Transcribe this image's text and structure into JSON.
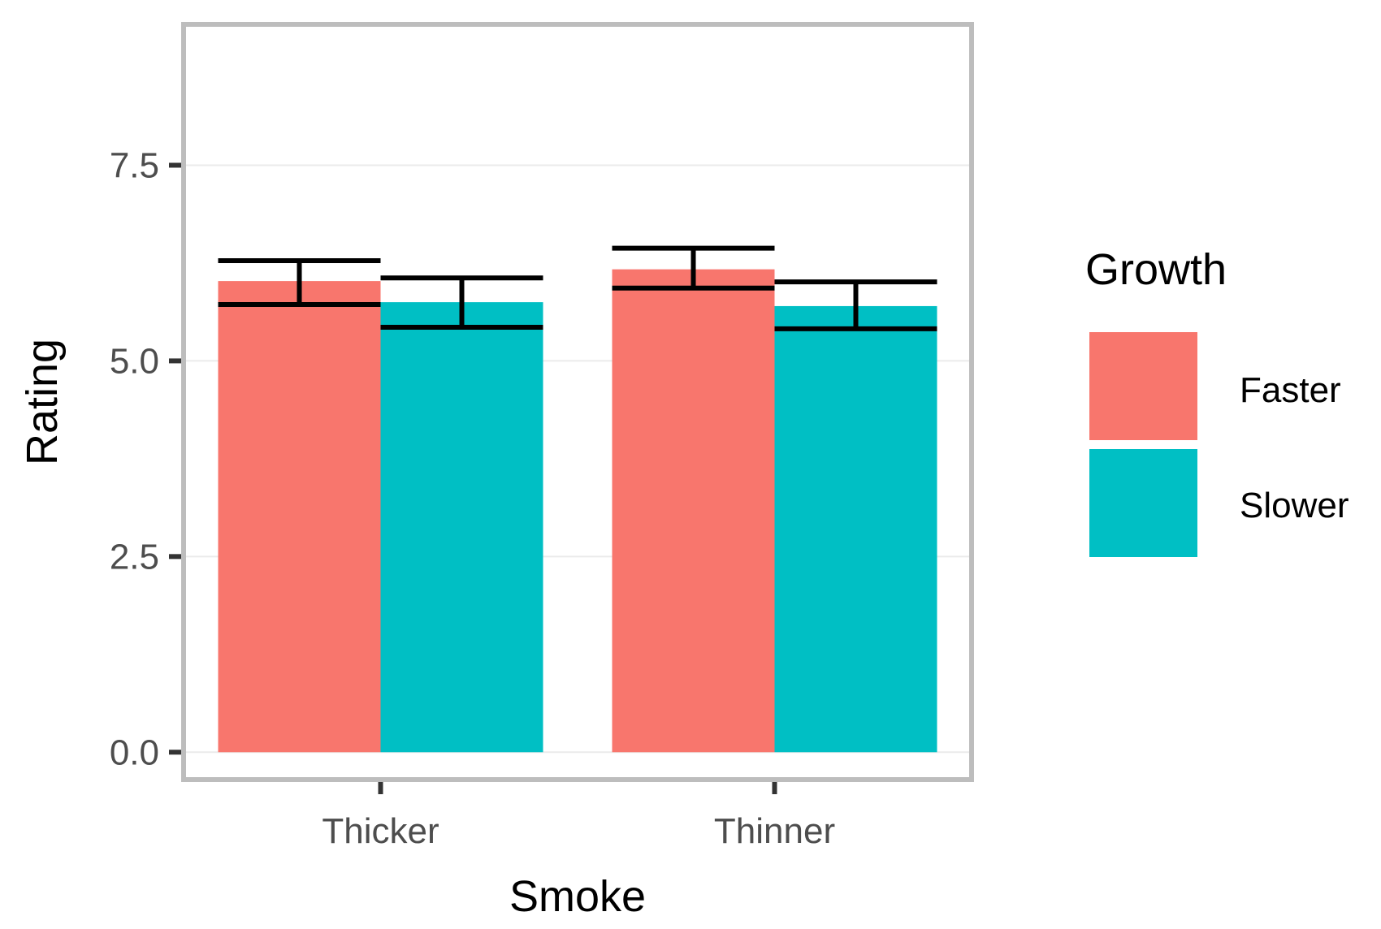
{
  "chart_data": {
    "type": "bar",
    "title": "",
    "xlabel": "Smoke",
    "ylabel": "Rating",
    "categories": [
      "Thicker",
      "Thinner"
    ],
    "ylim": [
      -0.35,
      9.3
    ],
    "yticks": [
      0.0,
      2.5,
      5.0,
      7.5
    ],
    "ytick_labels": [
      "0.0",
      "2.5",
      "5.0",
      "7.5"
    ],
    "grid": true,
    "legend": {
      "title": "Growth",
      "position": "right"
    },
    "series": [
      {
        "name": "Faster",
        "color": "#F8766D",
        "values": [
          6.02,
          6.17
        ],
        "error_low": [
          5.72,
          5.93
        ],
        "error_high": [
          6.28,
          6.44
        ]
      },
      {
        "name": "Slower",
        "color": "#00BFC4",
        "values": [
          5.75,
          5.7
        ],
        "error_low": [
          5.43,
          5.41
        ],
        "error_high": [
          6.06,
          6.01
        ]
      }
    ]
  }
}
